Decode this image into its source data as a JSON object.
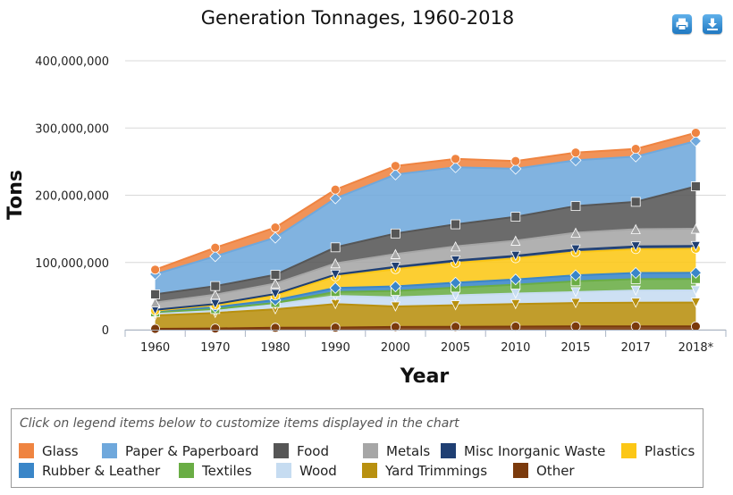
{
  "title": "Generation Tonnages, 1960-2018",
  "toolbar": {
    "print_icon": "print-icon",
    "download_icon": "download-icon"
  },
  "legend_hint": "Click on legend items below to customize items displayed in the chart",
  "chart_data": {
    "type": "area",
    "stacked": true,
    "title": "Generation Tonnages, 1960-2018",
    "xlabel": "Year",
    "ylabel": "Tons",
    "categories": [
      "1960",
      "1970",
      "1980",
      "1990",
      "2000",
      "2005",
      "2010",
      "2015",
      "2017",
      "2018*"
    ],
    "ylim": [
      0,
      400000000
    ],
    "yticks": [
      "0",
      "100,000,000",
      "200,000,000",
      "300,000,000",
      "400,000,000"
    ],
    "grid": "horizontal",
    "legend_position": "bottom",
    "series": [
      {
        "name": "Other",
        "color": "#7b3a0c",
        "marker": "circle",
        "values": [
          1300000,
          1800000,
          2900000,
          3200000,
          4100000,
          4300000,
          4700000,
          5000000,
          5000000,
          5000000
        ]
      },
      {
        "name": "Yard Trimmings",
        "color": "#b8900f",
        "marker": "triangle-down",
        "values": [
          20000000,
          23200000,
          27500000,
          35000000,
          30500000,
          32100000,
          33400000,
          34700000,
          35200000,
          35400000
        ]
      },
      {
        "name": "Wood",
        "color": "#c6dcf1",
        "marker": "triangle-down",
        "values": [
          3000000,
          3700000,
          7000000,
          12200000,
          13600000,
          14800000,
          15700000,
          16300000,
          18100000,
          18100000
        ]
      },
      {
        "name": "Textiles",
        "color": "#6aad45",
        "marker": "square",
        "values": [
          1800000,
          2000000,
          2500000,
          5800000,
          9500000,
          11400000,
          13200000,
          16000000,
          16900000,
          17000000
        ]
      },
      {
        "name": "Rubber & Leather",
        "color": "#3a86c8",
        "marker": "diamond",
        "values": [
          1800000,
          2900000,
          4200000,
          5800000,
          6700000,
          7300000,
          7800000,
          8900000,
          9200000,
          9200000
        ]
      },
      {
        "name": "Plastics",
        "color": "#fcc716",
        "marker": "circle",
        "values": [
          400000,
          2900000,
          6800000,
          17100000,
          25600000,
          29400000,
          31400000,
          34500000,
          35400000,
          35700000
        ]
      },
      {
        "name": "Misc Inorganic Waste",
        "color": "#1f3f73",
        "marker": "triangle-down",
        "values": [
          1300000,
          1800000,
          2300000,
          2900000,
          3500000,
          3700000,
          3800000,
          4000000,
          4100000,
          4100000
        ]
      },
      {
        "name": "Metals",
        "color": "#a6a6a6",
        "marker": "triangle",
        "values": [
          10800000,
          13800000,
          15500000,
          16600000,
          18900000,
          20800000,
          22300000,
          24800000,
          25600000,
          25600000
        ]
      },
      {
        "name": "Food",
        "color": "#565656",
        "marker": "square",
        "values": [
          12200000,
          12800000,
          13000000,
          23900000,
          30700000,
          32900000,
          35700000,
          39700000,
          40700000,
          63100000
        ]
      },
      {
        "name": "Paper & Paperboard",
        "color": "#6fa8dc",
        "marker": "diamond",
        "values": [
          29990000,
          44310000,
          55160000,
          72730000,
          87740000,
          84840000,
          71310000,
          68050000,
          67390000,
          67390000
        ]
      },
      {
        "name": "Glass",
        "color": "#ef8441",
        "marker": "circle",
        "values": [
          6720000,
          12740000,
          15130000,
          13100000,
          12770000,
          12540000,
          11530000,
          11470000,
          11380000,
          12250000
        ]
      }
    ]
  },
  "legend": [
    {
      "name": "Glass",
      "color": "#ef8441"
    },
    {
      "name": "Paper & Paperboard",
      "color": "#6fa8dc"
    },
    {
      "name": "Food",
      "color": "#565656"
    },
    {
      "name": "Metals",
      "color": "#a6a6a6"
    },
    {
      "name": "Misc Inorganic Waste",
      "color": "#1f3f73"
    },
    {
      "name": "Plastics",
      "color": "#fcc716"
    },
    {
      "name": "Rubber & Leather",
      "color": "#3a86c8"
    },
    {
      "name": "Textiles",
      "color": "#6aad45"
    },
    {
      "name": "Wood",
      "color": "#c6dcf1"
    },
    {
      "name": "Yard Trimmings",
      "color": "#b8900f"
    },
    {
      "name": "Other",
      "color": "#7b3a0c"
    }
  ]
}
